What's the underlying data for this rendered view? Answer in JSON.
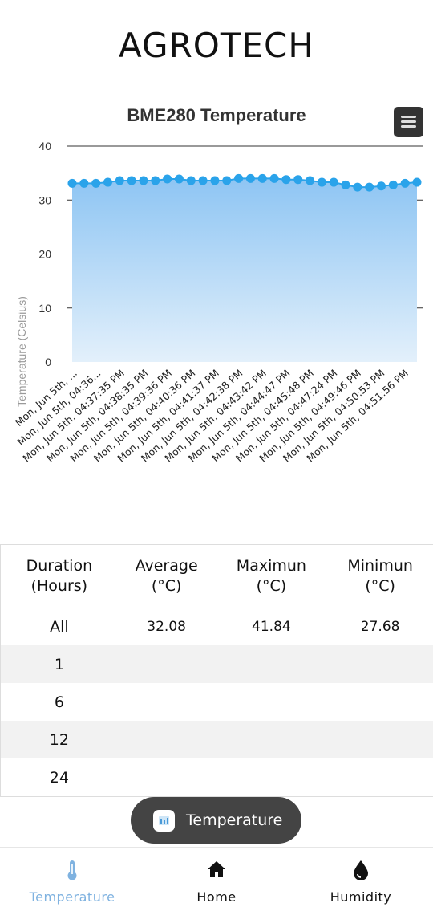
{
  "app": {
    "title": "AGROTECH"
  },
  "chart": {
    "menu_icon": "hamburger-menu-icon",
    "colors": {
      "line": "#2aa3ea",
      "fill_top": "#8ec5f3",
      "fill_bottom": "#e3f0fb",
      "grid": "#333333"
    }
  },
  "chart_data": {
    "type": "area",
    "title": "BME280 Temperature",
    "ylabel": "Temperature (Celsius)",
    "xlabel": "",
    "ylim": [
      0,
      40
    ],
    "yticks": [
      0,
      10,
      20,
      30,
      40
    ],
    "grid": true,
    "x_tick_labels": [
      "Mon, Jun 5th, ...",
      "Mon, Jun 5th, 04:36...",
      "Mon, Jun 5th, 04:37:35 PM",
      "Mon, Jun 5th, 04:38:35 PM",
      "Mon, Jun 5th, 04:39:36 PM",
      "Mon, Jun 5th, 04:40:36 PM",
      "Mon, Jun 5th, 04:41:37 PM",
      "Mon, Jun 5th, 04:42:38 PM",
      "Mon, Jun 5th, 04:43:42 PM",
      "Mon, Jun 5th, 04:44:47 PM",
      "Mon, Jun 5th, 04:45:48 PM",
      "Mon, Jun 5th, 04:47:24 PM",
      "Mon, Jun 5th, 04:49:46 PM",
      "Mon, Jun 5th, 04:50:53 PM",
      "Mon, Jun 5th, 04:51:56 PM"
    ],
    "series": [
      {
        "values": [
          33.1,
          33.1,
          33.1,
          33.3,
          33.6,
          33.6,
          33.6,
          33.6,
          33.9,
          33.9,
          33.6,
          33.6,
          33.6,
          33.6,
          34.0,
          34.0,
          34.0,
          34.0,
          33.8,
          33.8,
          33.6,
          33.3,
          33.3,
          32.8,
          32.4,
          32.4,
          32.6,
          32.8,
          33.1,
          33.3
        ]
      }
    ]
  },
  "table": {
    "headers": [
      [
        "Duration",
        "(Hours)"
      ],
      [
        "Average",
        "(°C)"
      ],
      [
        "Maximun",
        "(°C)"
      ],
      [
        "Minimun",
        "(°C)"
      ]
    ],
    "rows": [
      [
        "All",
        "32.08",
        "41.84",
        "27.68"
      ],
      [
        "1",
        "",
        "",
        ""
      ],
      [
        "6",
        "",
        "",
        ""
      ],
      [
        "12",
        "",
        "",
        ""
      ],
      [
        "24",
        "",
        "",
        ""
      ]
    ]
  },
  "toast": {
    "label": "Temperature",
    "icon": "app-icon"
  },
  "nav": {
    "items": [
      {
        "label": "Temperature",
        "icon": "thermometer-icon",
        "active": true
      },
      {
        "label": "Home",
        "icon": "home-icon",
        "active": false
      },
      {
        "label": "Humidity",
        "icon": "water-drop-icon",
        "active": false
      }
    ],
    "active_color": "#7fb2e0"
  }
}
